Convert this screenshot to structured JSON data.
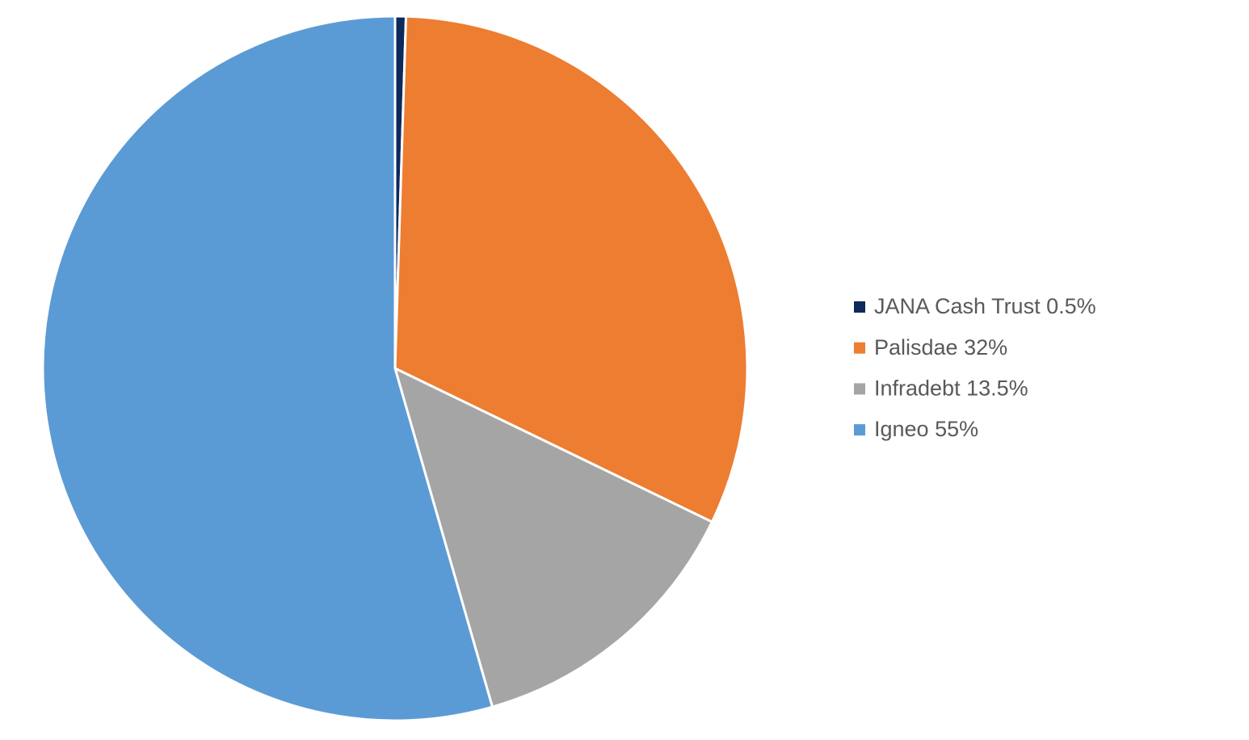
{
  "chart_data": {
    "type": "pie",
    "categories": [
      "JANA Cash Trust 0.5%",
      "Palisdae 32%",
      "Infradebt 13.5%",
      "Igneo 55%"
    ],
    "values": [
      0.5,
      32,
      13.5,
      55
    ],
    "colors": [
      "#0d2a5c",
      "#ed7d31",
      "#a5a5a5",
      "#5b9bd5"
    ],
    "legend": "right"
  }
}
